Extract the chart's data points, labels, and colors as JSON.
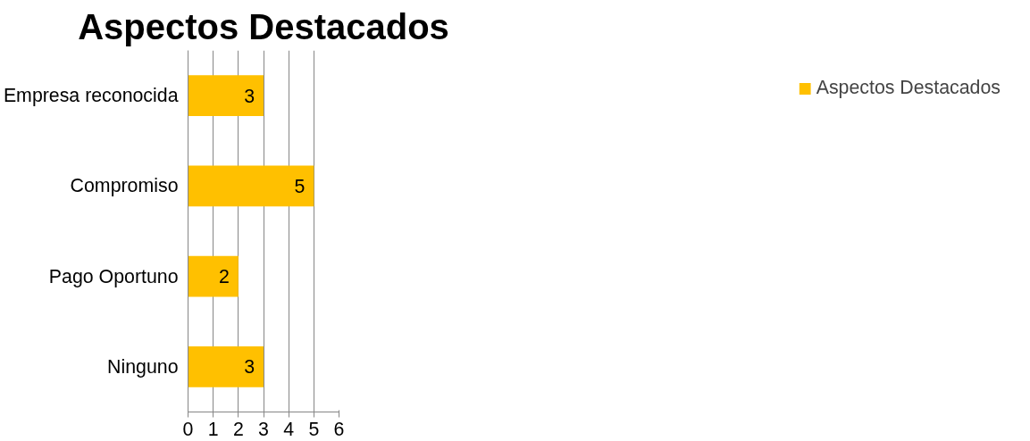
{
  "chart_data": {
    "type": "bar",
    "orientation": "horizontal",
    "title": "Aspectos Destacados",
    "categories": [
      "Empresa reconocida",
      "Compromiso",
      "Pago Oportuno",
      "Ninguno"
    ],
    "series": [
      {
        "name": "Aspectos Destacados",
        "color": "#ffc000",
        "values": [
          3,
          5,
          2,
          3
        ]
      }
    ],
    "xlim": [
      0,
      6
    ],
    "xticks": [
      0,
      1,
      2,
      3,
      4,
      5,
      6
    ],
    "grid": "x",
    "legend": "right",
    "data_labels": true
  }
}
